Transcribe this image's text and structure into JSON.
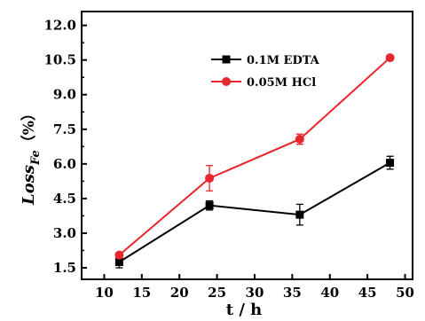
{
  "chart_data": {
    "type": "line",
    "xlabel": "t / h",
    "ylabel_main": "Loss",
    "ylabel_sub": "Fe",
    "ylabel_unit": "（%）",
    "xlim": [
      7,
      51
    ],
    "ylim": [
      1.0,
      12.6
    ],
    "xticks": [
      10,
      15,
      20,
      25,
      30,
      35,
      40,
      45,
      50
    ],
    "yticks": [
      1.5,
      3.0,
      4.5,
      6.0,
      7.5,
      9.0,
      10.5,
      12.0
    ],
    "ytick_labels": [
      "1.5",
      "3.0",
      "4.5",
      "6.0",
      "7.5",
      "9.0",
      "10.5",
      "12.0"
    ],
    "grid": false,
    "legend_position": "top-center",
    "series": [
      {
        "name": "0.1M EDTA",
        "color": "#000000",
        "marker": "square",
        "x": [
          12,
          24,
          36,
          48
        ],
        "y": [
          1.75,
          4.2,
          3.8,
          6.05
        ],
        "yerr": [
          0.25,
          0.2,
          0.45,
          0.28
        ]
      },
      {
        "name": "0.05M HCl",
        "color": "#e8262b",
        "marker": "circle",
        "x": [
          12,
          24,
          36,
          48
        ],
        "y": [
          2.05,
          5.38,
          7.07,
          10.6
        ],
        "yerr": [
          0.1,
          0.55,
          0.22,
          0.1
        ]
      }
    ]
  }
}
